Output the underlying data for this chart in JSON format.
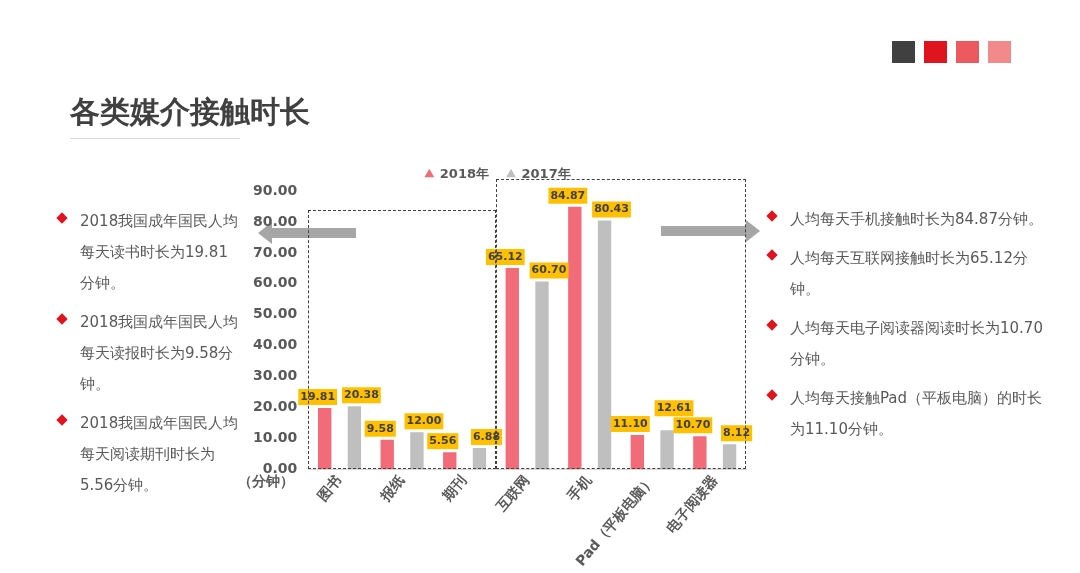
{
  "chart_data": {
    "type": "bar",
    "title": "各类媒介接触时长",
    "ylabel": "（分钟）",
    "categories": [
      "图书",
      "报纸",
      "期刊",
      "互联网",
      "手机",
      "Pad（平板电脑）",
      "电子阅读器"
    ],
    "series": [
      {
        "name": "2018年",
        "color": "#f26b78",
        "values": [
          19.81,
          9.58,
          5.56,
          65.12,
          84.87,
          11.1,
          10.7
        ],
        "value_labels": [
          "19.81",
          "9.58",
          "5.56",
          "65.12",
          "84.87",
          "11.10",
          "10.70"
        ]
      },
      {
        "name": "2017年",
        "color": "#bfbfbf",
        "values": [
          20.38,
          12,
          6.88,
          60.7,
          80.43,
          12.61,
          8.12
        ],
        "value_labels": [
          "20.38",
          "12.00",
          "6.88",
          "60.70",
          "80.43",
          "12.61",
          "8.12"
        ]
      }
    ],
    "ylim": [
      0,
      90
    ],
    "yticks": [
      {
        "value": 0,
        "label": "0.00"
      },
      {
        "value": 10,
        "label": "10.00"
      },
      {
        "value": 20,
        "label": "20.00"
      },
      {
        "value": 30,
        "label": "30.00"
      },
      {
        "value": 40,
        "label": "40.00"
      },
      {
        "value": 50,
        "label": "50.00"
      },
      {
        "value": 60,
        "label": "60.00"
      },
      {
        "value": 70,
        "label": "70.00"
      },
      {
        "value": 80,
        "label": "80.00"
      },
      {
        "value": 90,
        "label": "90.00"
      }
    ],
    "legend": "top",
    "annotations": [
      "2018我国成年国民人均每天读书时长为19.81分钟。",
      "2018我国成年国民人均每天读报时长为9.58分钟。",
      "2018我国成年国民人均每天阅读期刊时长为5.56分钟。",
      "人均每天手机接触时长为84.87分钟。",
      "人均每天互联网接触时长为65.12分钟。",
      "人均每天电子阅读器阅读时长为10.70分钟。",
      "人均每天接触Pad（平板电脑）的时长为11.10分钟。"
    ]
  }
}
